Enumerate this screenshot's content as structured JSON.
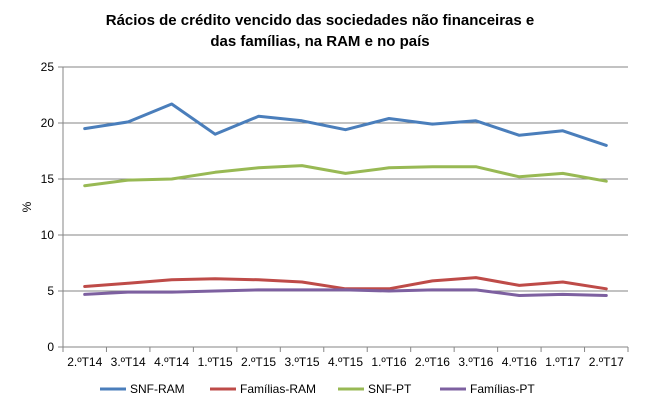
{
  "chart_data": {
    "type": "line",
    "title_lines": [
      "Rácios de crédito vencido  das sociedades  não financeiras e",
      "das famílias, na RAM e no país"
    ],
    "xlabel": "",
    "ylabel": "%",
    "ylim": [
      0,
      25
    ],
    "yticks": [
      "0",
      "5",
      "10",
      "15",
      "20",
      "25"
    ],
    "grid": true,
    "legend_position": "bottom",
    "categories": [
      "2.ºT14",
      "3.ºT14",
      "4.ºT14",
      "1.ºT15",
      "2.ºT15",
      "3.ºT15",
      "4.ºT15",
      "1.ºT16",
      "2.ºT16",
      "3.ºT16",
      "4.ºT16",
      "1.ºT17",
      "2.ºT17"
    ],
    "series": [
      {
        "name": "SNF-RAM",
        "color": "#4A7EBB",
        "values": [
          19.5,
          20.1,
          21.7,
          19.0,
          20.6,
          20.2,
          19.4,
          20.4,
          19.9,
          20.2,
          18.9,
          19.3,
          18.0
        ]
      },
      {
        "name": "Famílias-RAM",
        "color": "#BE4B48",
        "values": [
          5.4,
          5.7,
          6.0,
          6.1,
          6.0,
          5.8,
          5.2,
          5.2,
          5.9,
          6.2,
          5.5,
          5.8,
          5.2
        ]
      },
      {
        "name": "SNF-PT",
        "color": "#98B954",
        "values": [
          14.4,
          14.9,
          15.0,
          15.6,
          16.0,
          16.2,
          15.5,
          16.0,
          16.1,
          16.1,
          15.2,
          15.5,
          14.8
        ]
      },
      {
        "name": "Famílias-PT",
        "color": "#7D60A0",
        "values": [
          4.7,
          4.9,
          4.9,
          5.0,
          5.1,
          5.1,
          5.1,
          5.0,
          5.1,
          5.1,
          4.6,
          4.7,
          4.6
        ]
      }
    ]
  }
}
